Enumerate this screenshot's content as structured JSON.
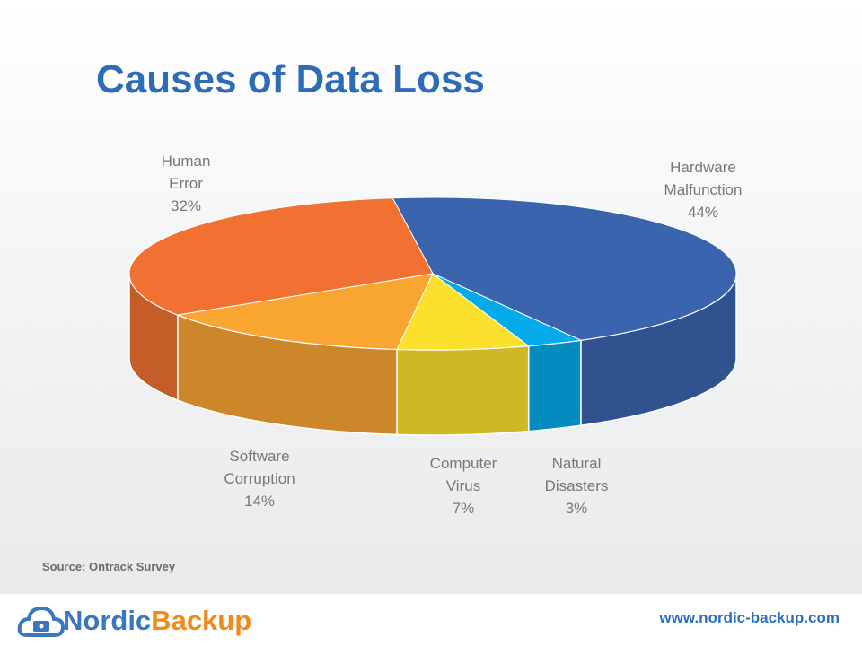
{
  "chart_data": {
    "type": "pie3d",
    "title": "Causes of Data Loss",
    "categories": [
      "Hardware Malfunction",
      "Natural Disasters",
      "Computer Virus",
      "Software Corruption",
      "Human Error"
    ],
    "values": [
      44,
      3,
      7,
      14,
      32
    ],
    "value_labels": [
      "44%",
      "3%",
      "7%",
      "14%",
      "32%"
    ],
    "colors": [
      "#3a64ae",
      "#05aaea",
      "#fbe02e",
      "#f8a532",
      "#f07131"
    ]
  },
  "source": "Source: Ontrack Survey",
  "footer": {
    "logo_part1": "Nordic",
    "logo_part2": "Backup",
    "url": "www.nordic-backup.com"
  }
}
